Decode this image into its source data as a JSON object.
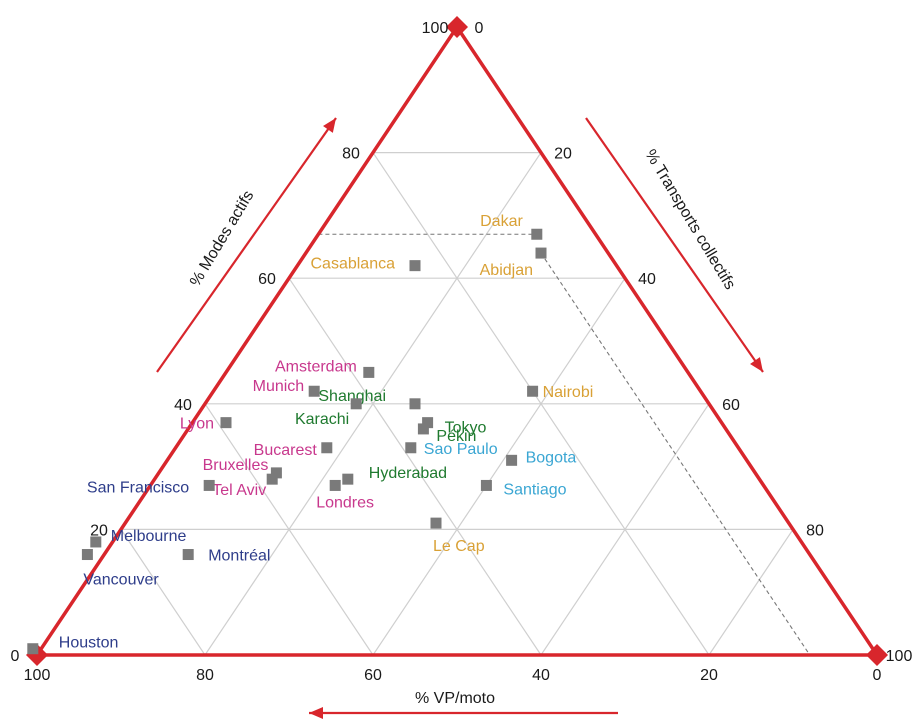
{
  "chart_data": {
    "type": "scatter",
    "subtype": "ternary",
    "axes": {
      "active": {
        "label": "% Modes actifs",
        "ticks": [
          0,
          20,
          40,
          60,
          80,
          100
        ]
      },
      "transit": {
        "label": "% Transports collectifs",
        "ticks": [
          0,
          20,
          40,
          60,
          80,
          100
        ]
      },
      "car": {
        "label": "% VP/moto",
        "ticks": [
          100,
          80,
          60,
          40,
          20,
          0
        ]
      }
    },
    "ticks": {
      "left_labels": [
        "0",
        "20",
        "40",
        "60",
        "80",
        "100"
      ],
      "right_labels": [
        "0",
        "20",
        "40",
        "60",
        "80",
        "100"
      ],
      "bottom_labels": [
        "100",
        "80",
        "60",
        "40",
        "20",
        "0"
      ]
    },
    "grid": true,
    "marker_color": "#7a7a7a",
    "frame_color": "#d8262c",
    "group_colors": {
      "africa": "#d9a136",
      "europe": "#c8388d",
      "asia": "#1f7a2f",
      "latam": "#3aa6d3",
      "anglo": "#2e3d8a"
    },
    "points": [
      {
        "name": "Dakar",
        "active": 67,
        "transit": 26,
        "car": 7,
        "group": "africa"
      },
      {
        "name": "Abidjan",
        "active": 64,
        "transit": 28,
        "car": 8,
        "group": "africa"
      },
      {
        "name": "Casablanca",
        "active": 62,
        "transit": 14,
        "car": 24,
        "group": "africa"
      },
      {
        "name": "Nairobi",
        "active": 42,
        "transit": 38,
        "car": 20,
        "group": "africa"
      },
      {
        "name": "Le Cap",
        "active": 21,
        "transit": 37,
        "car": 42,
        "group": "africa"
      },
      {
        "name": "Amsterdam",
        "active": 45,
        "transit": 17,
        "car": 38,
        "group": "europe"
      },
      {
        "name": "Munich",
        "active": 42,
        "transit": 12,
        "car": 46,
        "group": "europe"
      },
      {
        "name": "Lyon",
        "active": 37,
        "transit": 4,
        "car": 59,
        "group": "europe"
      },
      {
        "name": "Bucarest",
        "active": 33,
        "transit": 18,
        "car": 49,
        "group": "europe"
      },
      {
        "name": "Bruxelles",
        "active": 29,
        "transit": 14,
        "car": 57,
        "group": "europe"
      },
      {
        "name": "Tel Aviv",
        "active": 28,
        "transit": 14,
        "car": 58,
        "group": "europe"
      },
      {
        "name": "Londres",
        "active": 27,
        "transit": 22,
        "car": 51,
        "group": "europe"
      },
      {
        "name": "Shanghai",
        "active": 40,
        "transit": 25,
        "car": 35,
        "group": "asia"
      },
      {
        "name": "Karachi",
        "active": 40,
        "transit": 18,
        "car": 42,
        "group": "asia"
      },
      {
        "name": "Tokyo",
        "active": 37,
        "transit": 28,
        "car": 35,
        "group": "asia"
      },
      {
        "name": "Pékin",
        "active": 36,
        "transit": 28,
        "car": 36,
        "group": "asia"
      },
      {
        "name": "Hyderabad",
        "active": 28,
        "transit": 23,
        "car": 49,
        "group": "asia"
      },
      {
        "name": "Sao Paulo",
        "active": 33,
        "transit": 28,
        "car": 39,
        "group": "latam"
      },
      {
        "name": "Bogota",
        "active": 31,
        "transit": 41,
        "car": 28,
        "group": "latam"
      },
      {
        "name": "Santiago",
        "active": 27,
        "transit": 40,
        "car": 33,
        "group": "latam"
      },
      {
        "name": "San Francisco",
        "active": 27,
        "transit": 7,
        "car": 66,
        "group": "anglo"
      },
      {
        "name": "Melbourne",
        "active": 18,
        "transit": -2,
        "car": 84,
        "group": "anglo"
      },
      {
        "name": "Vancouver",
        "active": 16,
        "transit": -2,
        "car": 86,
        "group": "anglo"
      },
      {
        "name": "Montréal",
        "active": 16,
        "transit": 10,
        "car": 74,
        "group": "anglo"
      },
      {
        "name": "Houston",
        "active": 1,
        "transit": -1,
        "car": 100,
        "group": "anglo"
      }
    ]
  }
}
